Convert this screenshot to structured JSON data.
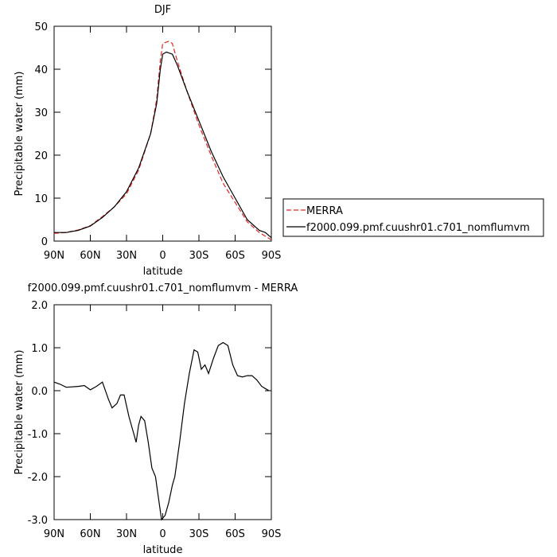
{
  "chart_data": [
    {
      "type": "line",
      "title": "DJF",
      "xlabel": "latitude",
      "ylabel": "Precipitable water (mm)",
      "xlim": [
        90,
        -90
      ],
      "xticks": [
        {
          "value": 90,
          "label": "90N"
        },
        {
          "value": 60,
          "label": "60N"
        },
        {
          "value": 30,
          "label": "30N"
        },
        0,
        {
          "value": -30,
          "label": "30S"
        },
        {
          "value": -60,
          "label": "60S"
        },
        {
          "value": -90,
          "label": "90S"
        }
      ],
      "ylim": [
        0,
        50
      ],
      "yticks": [
        0,
        10,
        20,
        30,
        40,
        50
      ],
      "legend": "right",
      "series": [
        {
          "name": "MERRA",
          "color": "#e32626",
          "dash": true,
          "x": [
            90,
            80,
            70,
            60,
            50,
            40,
            30,
            20,
            10,
            5,
            2,
            0,
            -5,
            -8,
            -12,
            -20,
            -30,
            -40,
            -50,
            -60,
            -70,
            -80,
            -90
          ],
          "values": [
            1.8,
            2,
            2.6,
            3.6,
            5.7,
            8,
            11,
            16.5,
            25,
            33,
            42,
            46,
            46.5,
            46,
            42,
            35,
            27,
            20,
            13.5,
            9,
            4.5,
            2,
            0.3
          ]
        },
        {
          "name": "f2000.099.pmf.cuushr01.c701_nomflumvm",
          "color": "#000000",
          "dash": false,
          "x": [
            90,
            80,
            70,
            60,
            50,
            40,
            30,
            20,
            10,
            5,
            2,
            0,
            -3,
            -8,
            -12,
            -20,
            -30,
            -40,
            -50,
            -60,
            -70,
            -80,
            -85,
            -90
          ],
          "values": [
            2,
            2,
            2.5,
            3.5,
            5.5,
            8,
            11.5,
            17,
            25,
            32,
            40,
            43.5,
            44,
            43.5,
            41,
            35,
            28,
            21,
            15,
            10,
            5,
            2.5,
            2,
            0.8
          ]
        }
      ]
    },
    {
      "type": "line",
      "title": "f2000.099.pmf.cuushr01.c701_nomflumvm - MERRA",
      "xlabel": "latitude",
      "ylabel": "Precipitable water (mm)",
      "xlim": [
        90,
        -90
      ],
      "xticks": [
        {
          "value": 90,
          "label": "90N"
        },
        {
          "value": 60,
          "label": "60N"
        },
        {
          "value": 30,
          "label": "30N"
        },
        0,
        {
          "value": -30,
          "label": "30S"
        },
        {
          "value": -60,
          "label": "60S"
        },
        {
          "value": -90,
          "label": "90S"
        }
      ],
      "ylim": [
        -3,
        2
      ],
      "yticks": [
        {
          "value": -3,
          "label": "-3.0"
        },
        {
          "value": -2,
          "label": "-2.0"
        },
        {
          "value": -1,
          "label": "-1.0"
        },
        {
          "value": 0,
          "label": "0.0"
        },
        {
          "value": 1,
          "label": "1.0"
        },
        {
          "value": 2,
          "label": "2.0"
        }
      ],
      "series": [
        {
          "color": "#000000",
          "x": [
            90,
            85,
            80,
            70,
            65,
            60,
            55,
            50,
            45,
            42,
            38,
            35,
            32,
            28,
            24,
            22,
            20,
            18,
            15,
            12,
            9,
            6,
            4,
            1,
            -2,
            -5,
            -8,
            -10,
            -14,
            -18,
            -22,
            -26,
            -29,
            -32,
            -35,
            -38,
            -42,
            -46,
            -50,
            -54,
            -58,
            -62,
            -66,
            -70,
            -74,
            -78,
            -82,
            -85,
            -88
          ],
          "values": [
            0.2,
            0.15,
            0.08,
            0.1,
            0.12,
            0.02,
            0.1,
            0.2,
            -0.2,
            -0.4,
            -0.3,
            -0.1,
            -0.1,
            -0.6,
            -1.0,
            -1.2,
            -0.8,
            -0.6,
            -0.7,
            -1.2,
            -1.8,
            -2.0,
            -2.4,
            -3.0,
            -2.9,
            -2.6,
            -2.2,
            -2.0,
            -1.2,
            -0.3,
            0.4,
            0.95,
            0.9,
            0.5,
            0.6,
            0.4,
            0.75,
            1.05,
            1.12,
            1.05,
            0.6,
            0.35,
            0.32,
            0.35,
            0.35,
            0.25,
            0.1,
            0.05,
            0.0
          ]
        }
      ]
    }
  ]
}
